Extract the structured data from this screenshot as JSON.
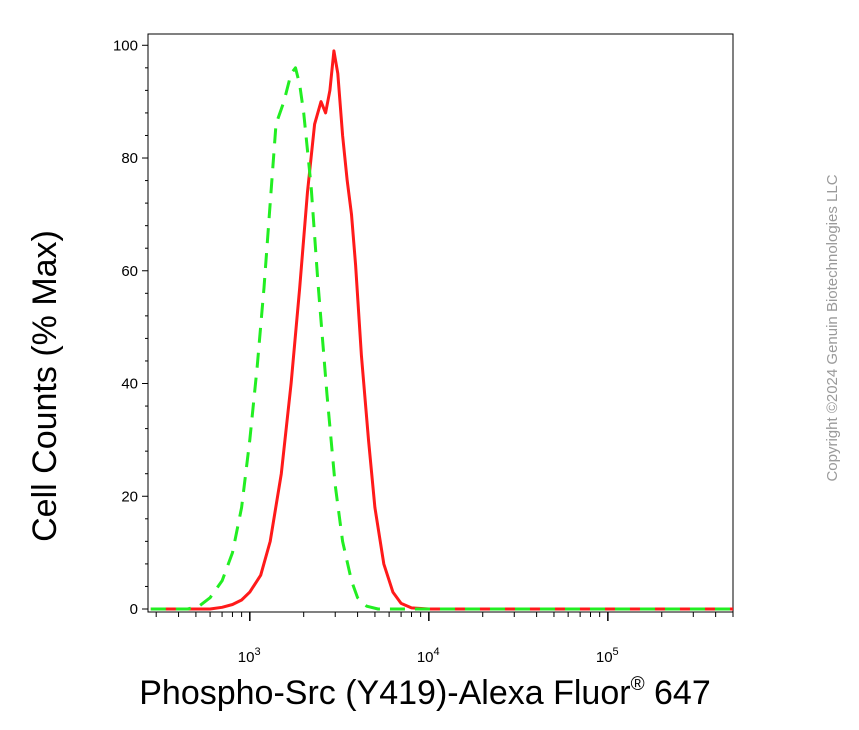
{
  "chart_data": {
    "type": "line",
    "title": "",
    "xlabel": "Phospho-Src (Y419)-Alexa Fluor",
    "xlabel_superscript": "®",
    "xlabel_suffix": " 647",
    "ylabel": "Cell Counts (% Max)",
    "xscale": "log",
    "xlim": [
      270,
      500000
    ],
    "ylim": [
      0,
      102
    ],
    "grid": false,
    "legend": "none",
    "y_ticks": [
      {
        "value": 0,
        "label": "0"
      },
      {
        "value": 20,
        "label": "20"
      },
      {
        "value": 40,
        "label": "40"
      },
      {
        "value": 60,
        "label": "60"
      },
      {
        "value": 80,
        "label": "80"
      },
      {
        "value": 100,
        "label": "100"
      }
    ],
    "x_ticks": [
      {
        "value": 1000,
        "base": "10",
        "exp": "3"
      },
      {
        "value": 10000,
        "base": "10",
        "exp": "4"
      },
      {
        "value": 100000,
        "base": "10",
        "exp": "5"
      }
    ],
    "series": [
      {
        "color": "#ff1a1a",
        "style": "solid",
        "x": [
          280,
          600,
          700,
          800,
          900,
          1000,
          1150,
          1300,
          1500,
          1700,
          1900,
          2100,
          2300,
          2500,
          2650,
          2800,
          2950,
          3100,
          3300,
          3500,
          3700,
          3900,
          4200,
          4600,
          5000,
          5600,
          6300,
          7000,
          8000,
          10000,
          30000,
          100000,
          500000
        ],
        "y": [
          0,
          0,
          0.3,
          0.8,
          1.6,
          3,
          6,
          12,
          24,
          40,
          57,
          74,
          86,
          90,
          88,
          92,
          99,
          95,
          84,
          76,
          70,
          61,
          45,
          30,
          18,
          8,
          3,
          1,
          0.2,
          0,
          0,
          0,
          0
        ]
      },
      {
        "color": "#22ee22",
        "style": "dashed",
        "x": [
          280,
          450,
          520,
          600,
          700,
          800,
          900,
          1000,
          1100,
          1200,
          1300,
          1400,
          1550,
          1700,
          1800,
          1900,
          2000,
          2200,
          2400,
          2700,
          3000,
          3300,
          3700,
          4000,
          4500,
          5200,
          6000,
          10000,
          100000,
          500000
        ],
        "y": [
          0,
          0,
          0.5,
          2,
          5,
          10,
          18,
          30,
          43,
          57,
          72,
          86,
          90,
          95,
          96,
          93,
          88,
          75,
          58,
          38,
          22,
          12,
          5,
          2,
          0.5,
          0,
          0,
          0,
          0,
          0
        ]
      }
    ]
  },
  "watermark": "Copyright ©2024 Genuin Biotechnologies LLC"
}
